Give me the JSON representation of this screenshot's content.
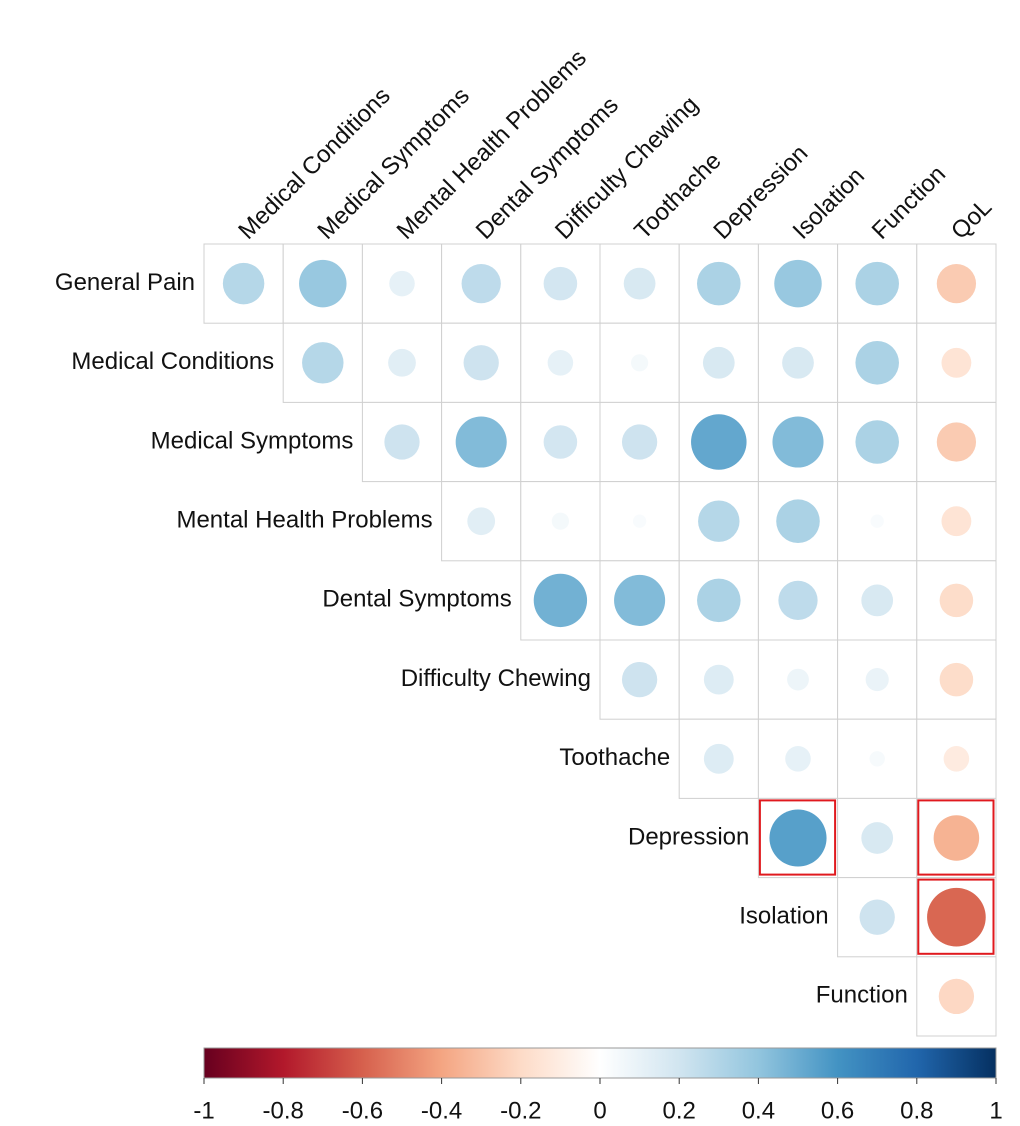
{
  "chart_data": {
    "type": "corrplot",
    "rows": [
      "General Pain",
      "Medical Conditions",
      "Medical Symptoms",
      "Mental Health Problems",
      "Dental Symptoms",
      "Difficulty Chewing",
      "Toothache",
      "Depression",
      "Isolation",
      "Function"
    ],
    "columns": [
      "Medical Conditions",
      "Medical Symptoms",
      "Mental Health Problems",
      "Dental Symptoms",
      "Difficulty Chewing",
      "Toothache",
      "Depression",
      "Isolation",
      "Function",
      "QoL"
    ],
    "values": [
      [
        0.29,
        0.38,
        0.11,
        0.26,
        0.19,
        0.17,
        0.32,
        0.38,
        0.32,
        -0.26
      ],
      [
        null,
        0.29,
        0.13,
        0.21,
        0.11,
        0.05,
        0.17,
        0.17,
        0.32,
        -0.15
      ],
      [
        null,
        null,
        0.21,
        0.44,
        0.19,
        0.21,
        0.52,
        0.44,
        0.32,
        -0.26
      ],
      [
        null,
        null,
        null,
        0.13,
        0.05,
        0.03,
        0.29,
        0.32,
        0.03,
        -0.15
      ],
      [
        null,
        null,
        null,
        null,
        0.48,
        0.44,
        0.32,
        0.26,
        0.17,
        -0.19
      ],
      [
        null,
        null,
        null,
        null,
        null,
        0.21,
        0.15,
        0.08,
        0.09,
        -0.19
      ],
      [
        null,
        null,
        null,
        null,
        null,
        null,
        0.15,
        0.11,
        0.04,
        -0.11
      ],
      [
        null,
        null,
        null,
        null,
        null,
        null,
        null,
        0.55,
        0.17,
        -0.35
      ],
      [
        null,
        null,
        null,
        null,
        null,
        null,
        null,
        null,
        0.21,
        -0.58
      ],
      [
        null,
        null,
        null,
        null,
        null,
        null,
        null,
        null,
        null,
        -0.21
      ]
    ],
    "highlight": [
      {
        "row": "Depression",
        "column": "Isolation"
      },
      {
        "row": "Depression",
        "column": "QoL"
      },
      {
        "row": "Isolation",
        "column": "QoL"
      }
    ],
    "highlight_color": "#e0191e",
    "colorscale": [
      "#67001F",
      "#B2182B",
      "#D6604D",
      "#F4A582",
      "#FDDBC7",
      "#FFFFFF",
      "#D1E5F0",
      "#92C5DE",
      "#4393C3",
      "#2166AC",
      "#053061"
    ],
    "clim": [
      -1,
      1
    ],
    "cticks": [
      -1,
      -0.8,
      -0.6,
      -0.4,
      -0.2,
      0,
      0.2,
      0.4,
      0.6,
      0.8,
      1
    ]
  }
}
